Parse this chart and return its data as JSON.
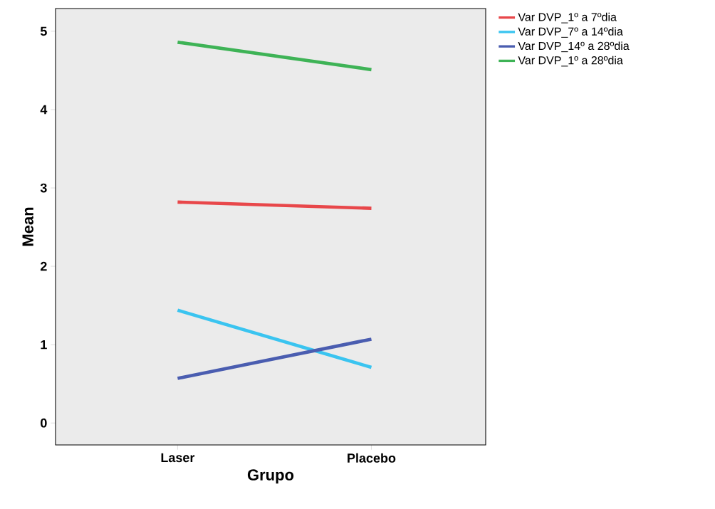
{
  "chart_data": {
    "type": "line",
    "xlabel": "Grupo",
    "ylabel": "Mean",
    "categories": [
      "Laser",
      "Placebo"
    ],
    "series": [
      {
        "name": "Var DVP_1º a 7ºdia",
        "color": "#e8474a",
        "values": [
          2.82,
          2.74
        ]
      },
      {
        "name": "Var DVP_7º a 14ºdia",
        "color": "#3ac4f0",
        "values": [
          1.44,
          0.71
        ]
      },
      {
        "name": "Var DVP_14º a 28ºdia",
        "color": "#4a5db0",
        "values": [
          0.57,
          1.07
        ]
      },
      {
        "name": "Var DVP_1º a 28ºdia",
        "color": "#3eb356",
        "values": [
          4.86,
          4.51
        ]
      }
    ],
    "ylim": [
      -0.28,
      5.29
    ],
    "yticks": [
      0,
      1,
      2,
      3,
      4,
      5
    ],
    "legend": "right"
  }
}
